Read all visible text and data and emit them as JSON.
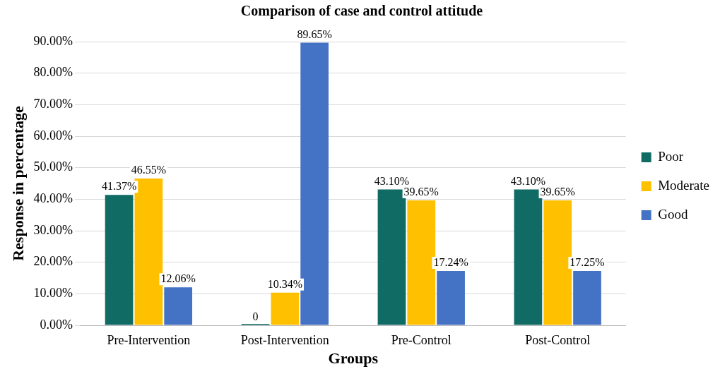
{
  "chart_data": {
    "type": "bar",
    "title": "Comparison of case and control attitude",
    "xlabel": "Groups",
    "ylabel": "Response in percentage",
    "categories": [
      "Pre-Intervention",
      "Post-Intervention",
      "Pre-Control",
      "Post-Control"
    ],
    "series": [
      {
        "name": "Poor",
        "color": "#116b65",
        "values": [
          41.37,
          0,
          43.1,
          43.1
        ],
        "value_labels": [
          "41.37%",
          "0",
          "43.10%",
          "43.10%"
        ]
      },
      {
        "name": "Moderate",
        "color": "#ffc000",
        "values": [
          46.55,
          10.34,
          39.65,
          39.65
        ],
        "value_labels": [
          "46.55%",
          "10.34%",
          "39.65%",
          "39.65%"
        ]
      },
      {
        "name": "Good",
        "color": "#4472c4",
        "values": [
          12.06,
          89.65,
          17.24,
          17.25
        ],
        "value_labels": [
          "12.06%",
          "89.65%",
          "17.24%",
          "17.25%"
        ]
      }
    ],
    "ylim": [
      0,
      90
    ],
    "yticks": [
      {
        "value": 0,
        "label": "0.00%"
      },
      {
        "value": 10,
        "label": "10.00%"
      },
      {
        "value": 20,
        "label": "20.00%"
      },
      {
        "value": 30,
        "label": "30.00%"
      },
      {
        "value": 40,
        "label": "40.00%"
      },
      {
        "value": 50,
        "label": "50.00%"
      },
      {
        "value": 60,
        "label": "60.00%"
      },
      {
        "value": 70,
        "label": "70.00%"
      },
      {
        "value": 80,
        "label": "80.00%"
      },
      {
        "value": 90,
        "label": "90.00%"
      }
    ],
    "grid": "y",
    "legend": "right"
  }
}
